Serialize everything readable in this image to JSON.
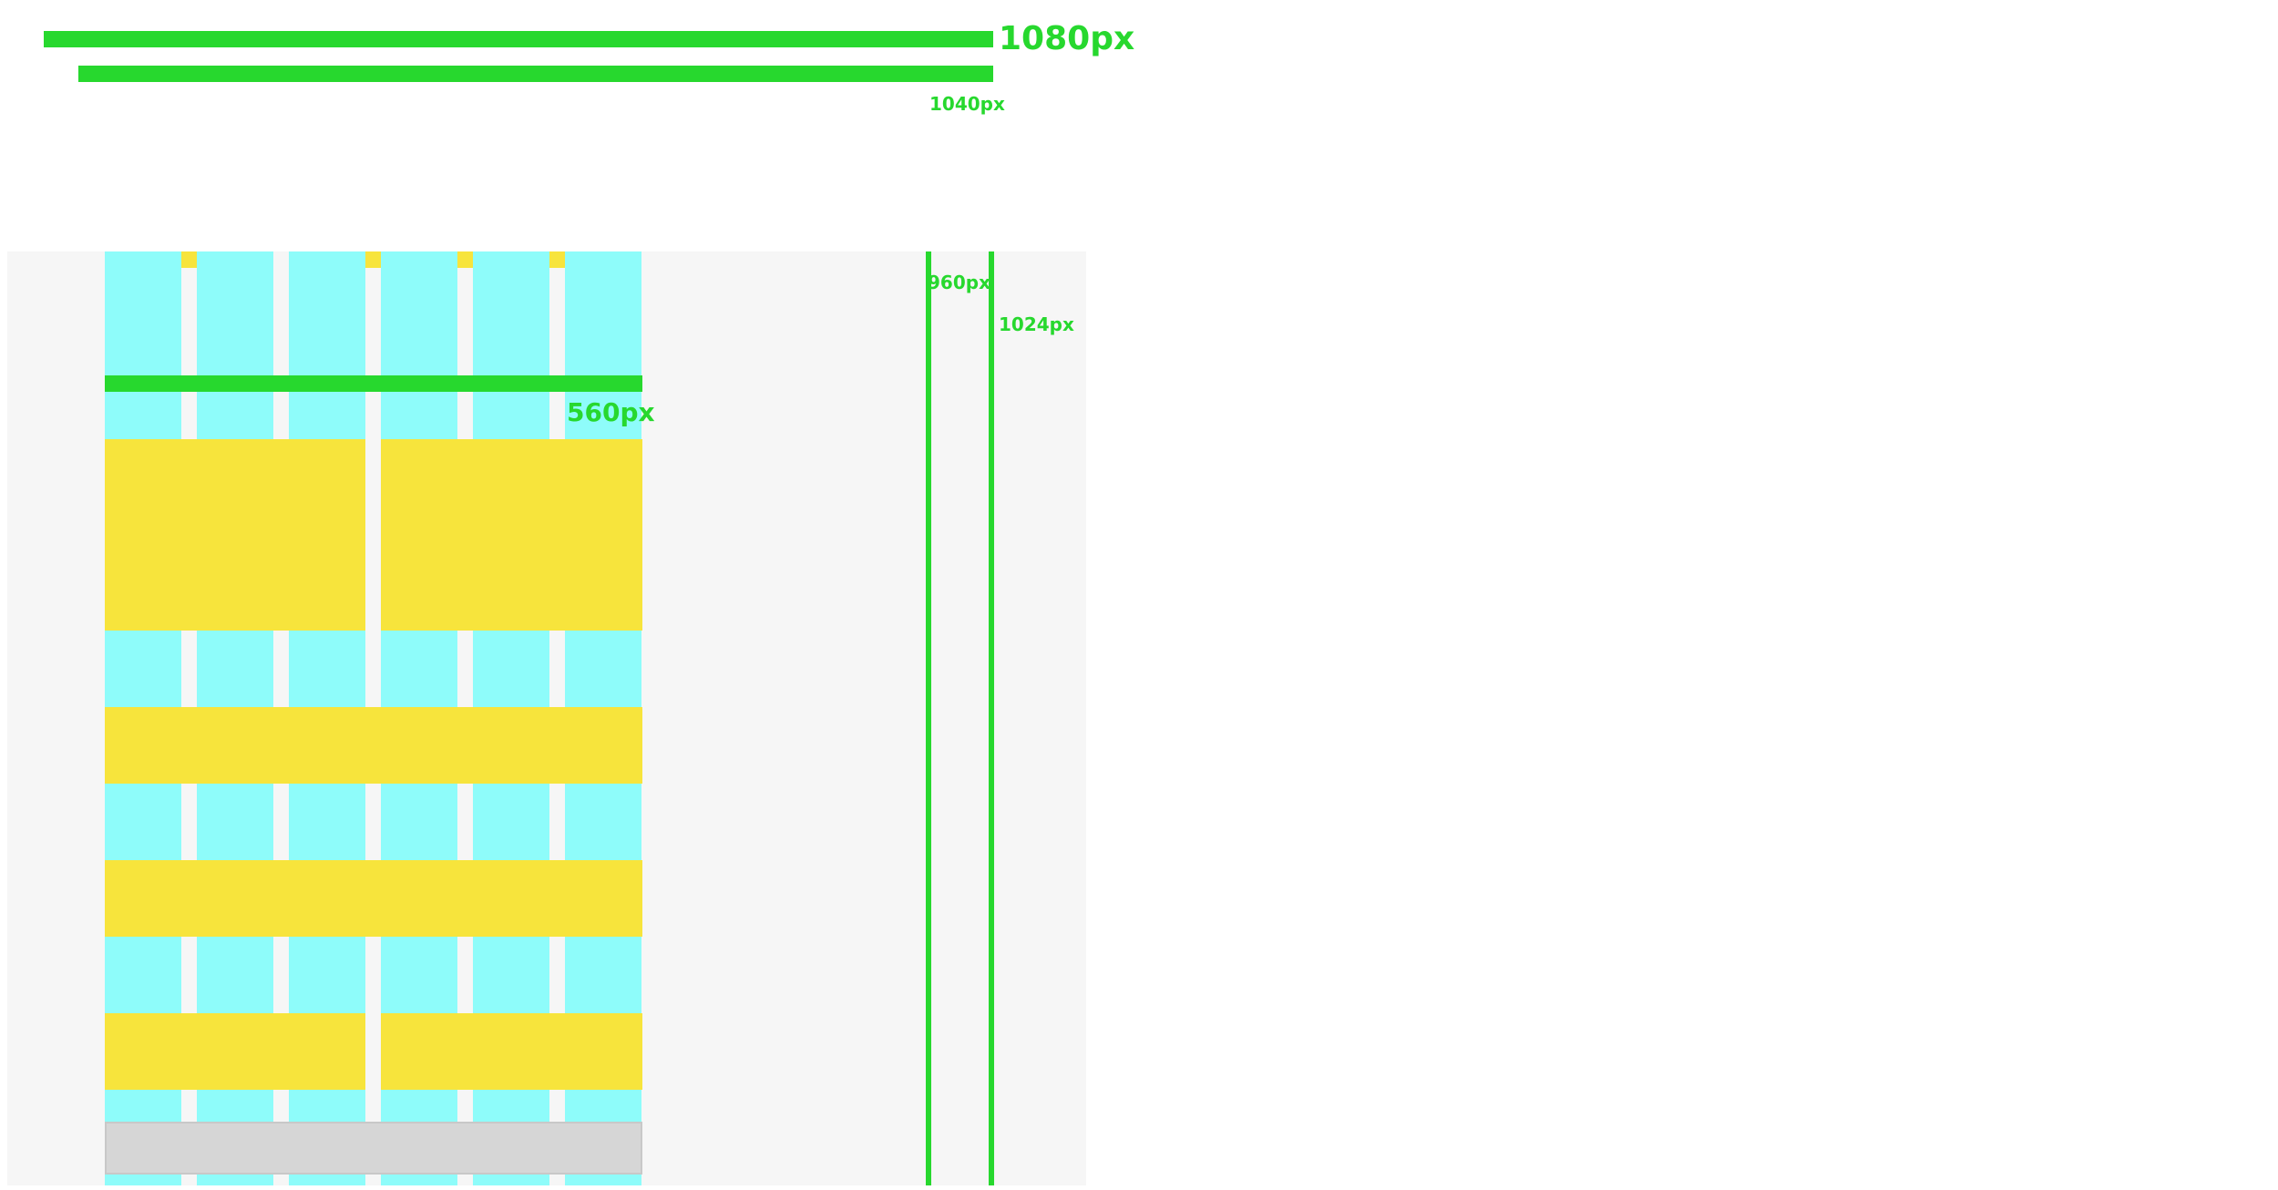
{
  "widths": {
    "w1080": "1080px",
    "w1040": "1040px",
    "w960": "960px",
    "w1024": "1024px",
    "w560": "560px"
  },
  "grid": {
    "columns": 6,
    "yellow_rows": [
      {
        "spans": [
          3,
          3
        ]
      },
      {
        "spans": [
          6
        ]
      },
      {
        "spans": [
          6
        ]
      },
      {
        "spans": [
          3,
          3
        ]
      }
    ]
  },
  "colors": {
    "measure_green": "#27d82e",
    "column_cyan": "#8efcfa",
    "block_yellow": "#f7e43c",
    "panel_gray": "#f6f6f6",
    "footer_gray": "#d6d6d6"
  }
}
